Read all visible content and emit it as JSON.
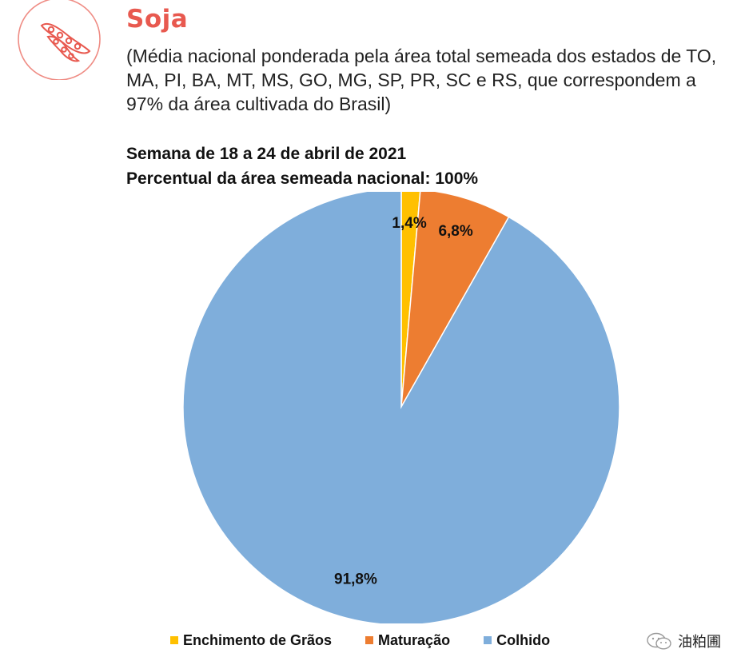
{
  "header": {
    "title": "Soja",
    "subtitle": "(Média nacional ponderada pela área total semeada dos estados de TO, MA, PI, BA, MT, MS, GO, MG, SP, PR, SC e RS, que correspondem a 97% da área cultivada do Brasil)",
    "logo_icon": "soybean-pod-icon",
    "accent_color": "#e8594f"
  },
  "chart_heading": {
    "line1": "Semana de 18 a 24 de abril de 2021",
    "line2": "Percentual da área semeada nacional: 100%"
  },
  "chart_data": {
    "type": "pie",
    "categories": [
      "Enchimento de Grãos",
      "Maturação",
      "Colhido"
    ],
    "values": [
      1.4,
      6.8,
      91.8
    ],
    "labels": [
      "1,4%",
      "6,8%",
      "91,8%"
    ],
    "colors": [
      "#ffc000",
      "#ed7d31",
      "#7faedb"
    ],
    "legend": "bottom"
  },
  "watermark": {
    "text": "油粕圃",
    "icon": "wechat-icon"
  }
}
